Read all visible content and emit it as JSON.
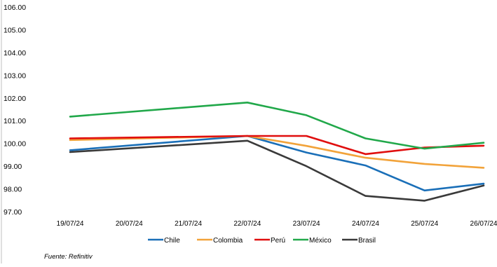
{
  "chart_data": {
    "type": "line",
    "title": "",
    "xlabel": "",
    "ylabel": "",
    "categories": [
      "19/07/24",
      "20/07/24",
      "21/07/24",
      "22/07/24",
      "23/07/24",
      "24/07/24",
      "25/07/24",
      "26/07/24"
    ],
    "ylim": [
      97,
      106
    ],
    "yticks": [
      "106.00",
      "105.00",
      "104.00",
      "103.00",
      "102.00",
      "101.00",
      "100.00",
      "99.00",
      "98.00",
      "97.00"
    ],
    "grid": false,
    "legend_position": "bottom",
    "series": [
      {
        "name": "Chile",
        "color": "#1a6fb8",
        "values": [
          99.7,
          null,
          null,
          100.33,
          99.6,
          99.03,
          97.93,
          98.23
        ]
      },
      {
        "name": "Colombia",
        "color": "#f2a33a",
        "values": [
          100.15,
          null,
          null,
          100.33,
          99.89,
          99.37,
          99.1,
          98.93
        ]
      },
      {
        "name": "Perú",
        "color": "#e00e0e",
        "values": [
          100.22,
          null,
          null,
          100.33,
          100.33,
          99.53,
          99.82,
          99.9
        ]
      },
      {
        "name": "México",
        "color": "#21a84a",
        "values": [
          101.18,
          null,
          null,
          101.8,
          101.24,
          100.22,
          99.77,
          100.03
        ]
      },
      {
        "name": "Brasil",
        "color": "#3a3a3a",
        "values": [
          99.62,
          null,
          null,
          100.12,
          99.0,
          97.69,
          97.48,
          98.15
        ]
      }
    ]
  },
  "source": "Fuente: Refinitiv"
}
